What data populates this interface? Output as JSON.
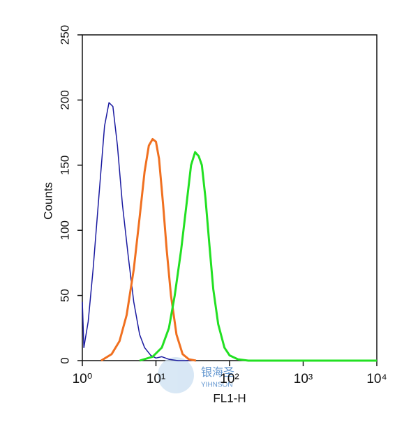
{
  "chart_data": {
    "type": "line",
    "xlabel": "FL1-H",
    "ylabel": "Counts",
    "xscale": "log",
    "xlim": [
      1,
      10000
    ],
    "xticks": [
      {
        "value": 1,
        "label": "10⁰"
      },
      {
        "value": 10,
        "label": "10¹"
      },
      {
        "value": 100,
        "label": "10²"
      },
      {
        "value": 1000,
        "label": "10³"
      },
      {
        "value": 10000,
        "label": "10⁴"
      }
    ],
    "ylim": [
      0,
      250
    ],
    "yticks": [
      0,
      50,
      100,
      150,
      200,
      250
    ],
    "series": [
      {
        "color": "#1a1aa0",
        "x": [
          1,
          1.05,
          1.2,
          1.4,
          1.7,
          2.0,
          2.3,
          2.6,
          3.0,
          3.5,
          4.2,
          5,
          6,
          7,
          8.5,
          10,
          12,
          15,
          20,
          30
        ],
        "values": [
          45,
          10,
          30,
          70,
          130,
          180,
          198,
          195,
          165,
          120,
          80,
          45,
          20,
          10,
          4,
          2,
          3,
          1,
          0,
          0
        ]
      },
      {
        "color": "#f07020",
        "x": [
          1.8,
          2.5,
          3.2,
          4,
          5,
          6,
          7,
          8,
          9,
          10,
          11,
          12.5,
          14,
          16,
          19,
          23,
          28,
          35
        ],
        "values": [
          0,
          5,
          15,
          35,
          70,
          110,
          145,
          165,
          170,
          168,
          155,
          120,
          85,
          50,
          20,
          5,
          1,
          0
        ]
      },
      {
        "color": "#22e022",
        "x": [
          6,
          9,
          12,
          15,
          18,
          22,
          26,
          30,
          34,
          38,
          42,
          47,
          53,
          60,
          70,
          85,
          100,
          130,
          180,
          250,
          10000
        ],
        "values": [
          0,
          3,
          10,
          25,
          50,
          85,
          120,
          150,
          160,
          157,
          150,
          125,
          90,
          55,
          28,
          10,
          4,
          1,
          0,
          0,
          0
        ]
      }
    ],
    "watermark": {
      "name": "银海圣",
      "latin": "YIHNSON"
    }
  }
}
